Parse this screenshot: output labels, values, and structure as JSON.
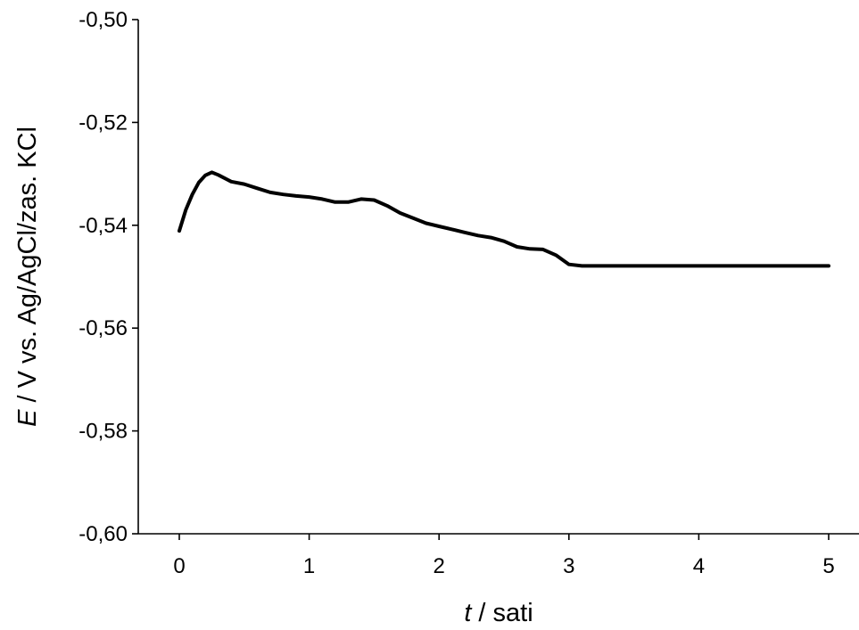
{
  "chart_data": {
    "type": "line",
    "xlabel": {
      "italic": "t",
      "rest": " / sati"
    },
    "ylabel": {
      "italic": "E",
      "rest": " / V vs. Ag/AgCl/zas. KCl"
    },
    "xlim": [
      0,
      5
    ],
    "ylim": [
      -0.6,
      -0.5
    ],
    "xticks": [
      0,
      1,
      2,
      3,
      4,
      5
    ],
    "xtick_labels": [
      "0",
      "1",
      "2",
      "3",
      "4",
      "5"
    ],
    "yticks": [
      -0.6,
      -0.58,
      -0.56,
      -0.54,
      -0.52,
      -0.5
    ],
    "ytick_labels": [
      "-0,60",
      "-0,58",
      "-0,56",
      "-0,54",
      "-0,52",
      "-0,50"
    ],
    "grid": false,
    "series": [
      {
        "color": "#000000",
        "points": [
          [
            0.0,
            -0.5411
          ],
          [
            0.05,
            -0.537
          ],
          [
            0.1,
            -0.534
          ],
          [
            0.15,
            -0.5317
          ],
          [
            0.2,
            -0.5303
          ],
          [
            0.25,
            -0.5297
          ],
          [
            0.3,
            -0.5302
          ],
          [
            0.4,
            -0.5315
          ],
          [
            0.5,
            -0.532
          ],
          [
            0.6,
            -0.5328
          ],
          [
            0.7,
            -0.5336
          ],
          [
            0.8,
            -0.534
          ],
          [
            0.9,
            -0.5343
          ],
          [
            1.0,
            -0.5345
          ],
          [
            1.1,
            -0.5349
          ],
          [
            1.2,
            -0.5355
          ],
          [
            1.3,
            -0.5355
          ],
          [
            1.4,
            -0.5349
          ],
          [
            1.5,
            -0.5351
          ],
          [
            1.6,
            -0.5362
          ],
          [
            1.7,
            -0.5376
          ],
          [
            1.8,
            -0.5386
          ],
          [
            1.9,
            -0.5396
          ],
          [
            2.0,
            -0.5402
          ],
          [
            2.1,
            -0.5408
          ],
          [
            2.2,
            -0.5414
          ],
          [
            2.3,
            -0.542
          ],
          [
            2.4,
            -0.5424
          ],
          [
            2.5,
            -0.5431
          ],
          [
            2.6,
            -0.5442
          ],
          [
            2.7,
            -0.5446
          ],
          [
            2.8,
            -0.5447
          ],
          [
            2.9,
            -0.5458
          ],
          [
            3.0,
            -0.5476
          ],
          [
            3.1,
            -0.5479
          ],
          [
            3.2,
            -0.5479
          ],
          [
            3.5,
            -0.5479
          ],
          [
            4.0,
            -0.5479
          ],
          [
            4.5,
            -0.5479
          ],
          [
            5.0,
            -0.5479
          ]
        ]
      }
    ]
  }
}
